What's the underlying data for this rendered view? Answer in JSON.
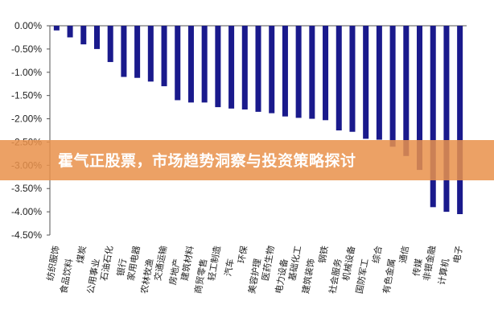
{
  "overlay": {
    "title": "霍气正股票，市场趋势洞察与投资策略探讨",
    "color": "#E9924C"
  },
  "chart_data": {
    "type": "bar",
    "bar_color": "#1A1A8C",
    "ylim": [
      -4.5,
      0
    ],
    "yticks": [
      "0.00%",
      "-0.50%",
      "-1.00%",
      "-1.50%",
      "-2.00%",
      "-2.50%",
      "-3.00%",
      "-3.50%",
      "-4.00%",
      "-4.50%"
    ],
    "ytick_values": [
      0,
      -0.5,
      -1.0,
      -1.5,
      -2.0,
      -2.5,
      -3.0,
      -3.5,
      -4.0,
      -4.5
    ],
    "categories": [
      "纺织服饰",
      "食品饮料",
      "煤炭",
      "公用事业",
      "石油石化",
      "银行",
      "家用电器",
      "农林牧渔",
      "交通运输",
      "房地产",
      "建筑材料",
      "商贸零售",
      "轻工制造",
      "汽车",
      "环保",
      "美容护理",
      "医药生物",
      "电力设备",
      "基础化工",
      "建筑装饰",
      "钢铁",
      "社会服务",
      "机械设备",
      "国防军工",
      "综合",
      "有色金属",
      "通信",
      "传媒",
      "非银金融",
      "计算机",
      "电子"
    ],
    "values": [
      -0.1,
      -0.25,
      -0.4,
      -0.5,
      -0.78,
      -1.1,
      -1.12,
      -1.2,
      -1.3,
      -1.6,
      -1.65,
      -1.65,
      -1.75,
      -1.78,
      -1.8,
      -1.85,
      -1.88,
      -1.95,
      -1.98,
      -2.0,
      -2.03,
      -2.25,
      -2.28,
      -2.43,
      -2.45,
      -2.6,
      -2.8,
      -3.1,
      -3.9,
      -4.0,
      -4.05
    ]
  }
}
